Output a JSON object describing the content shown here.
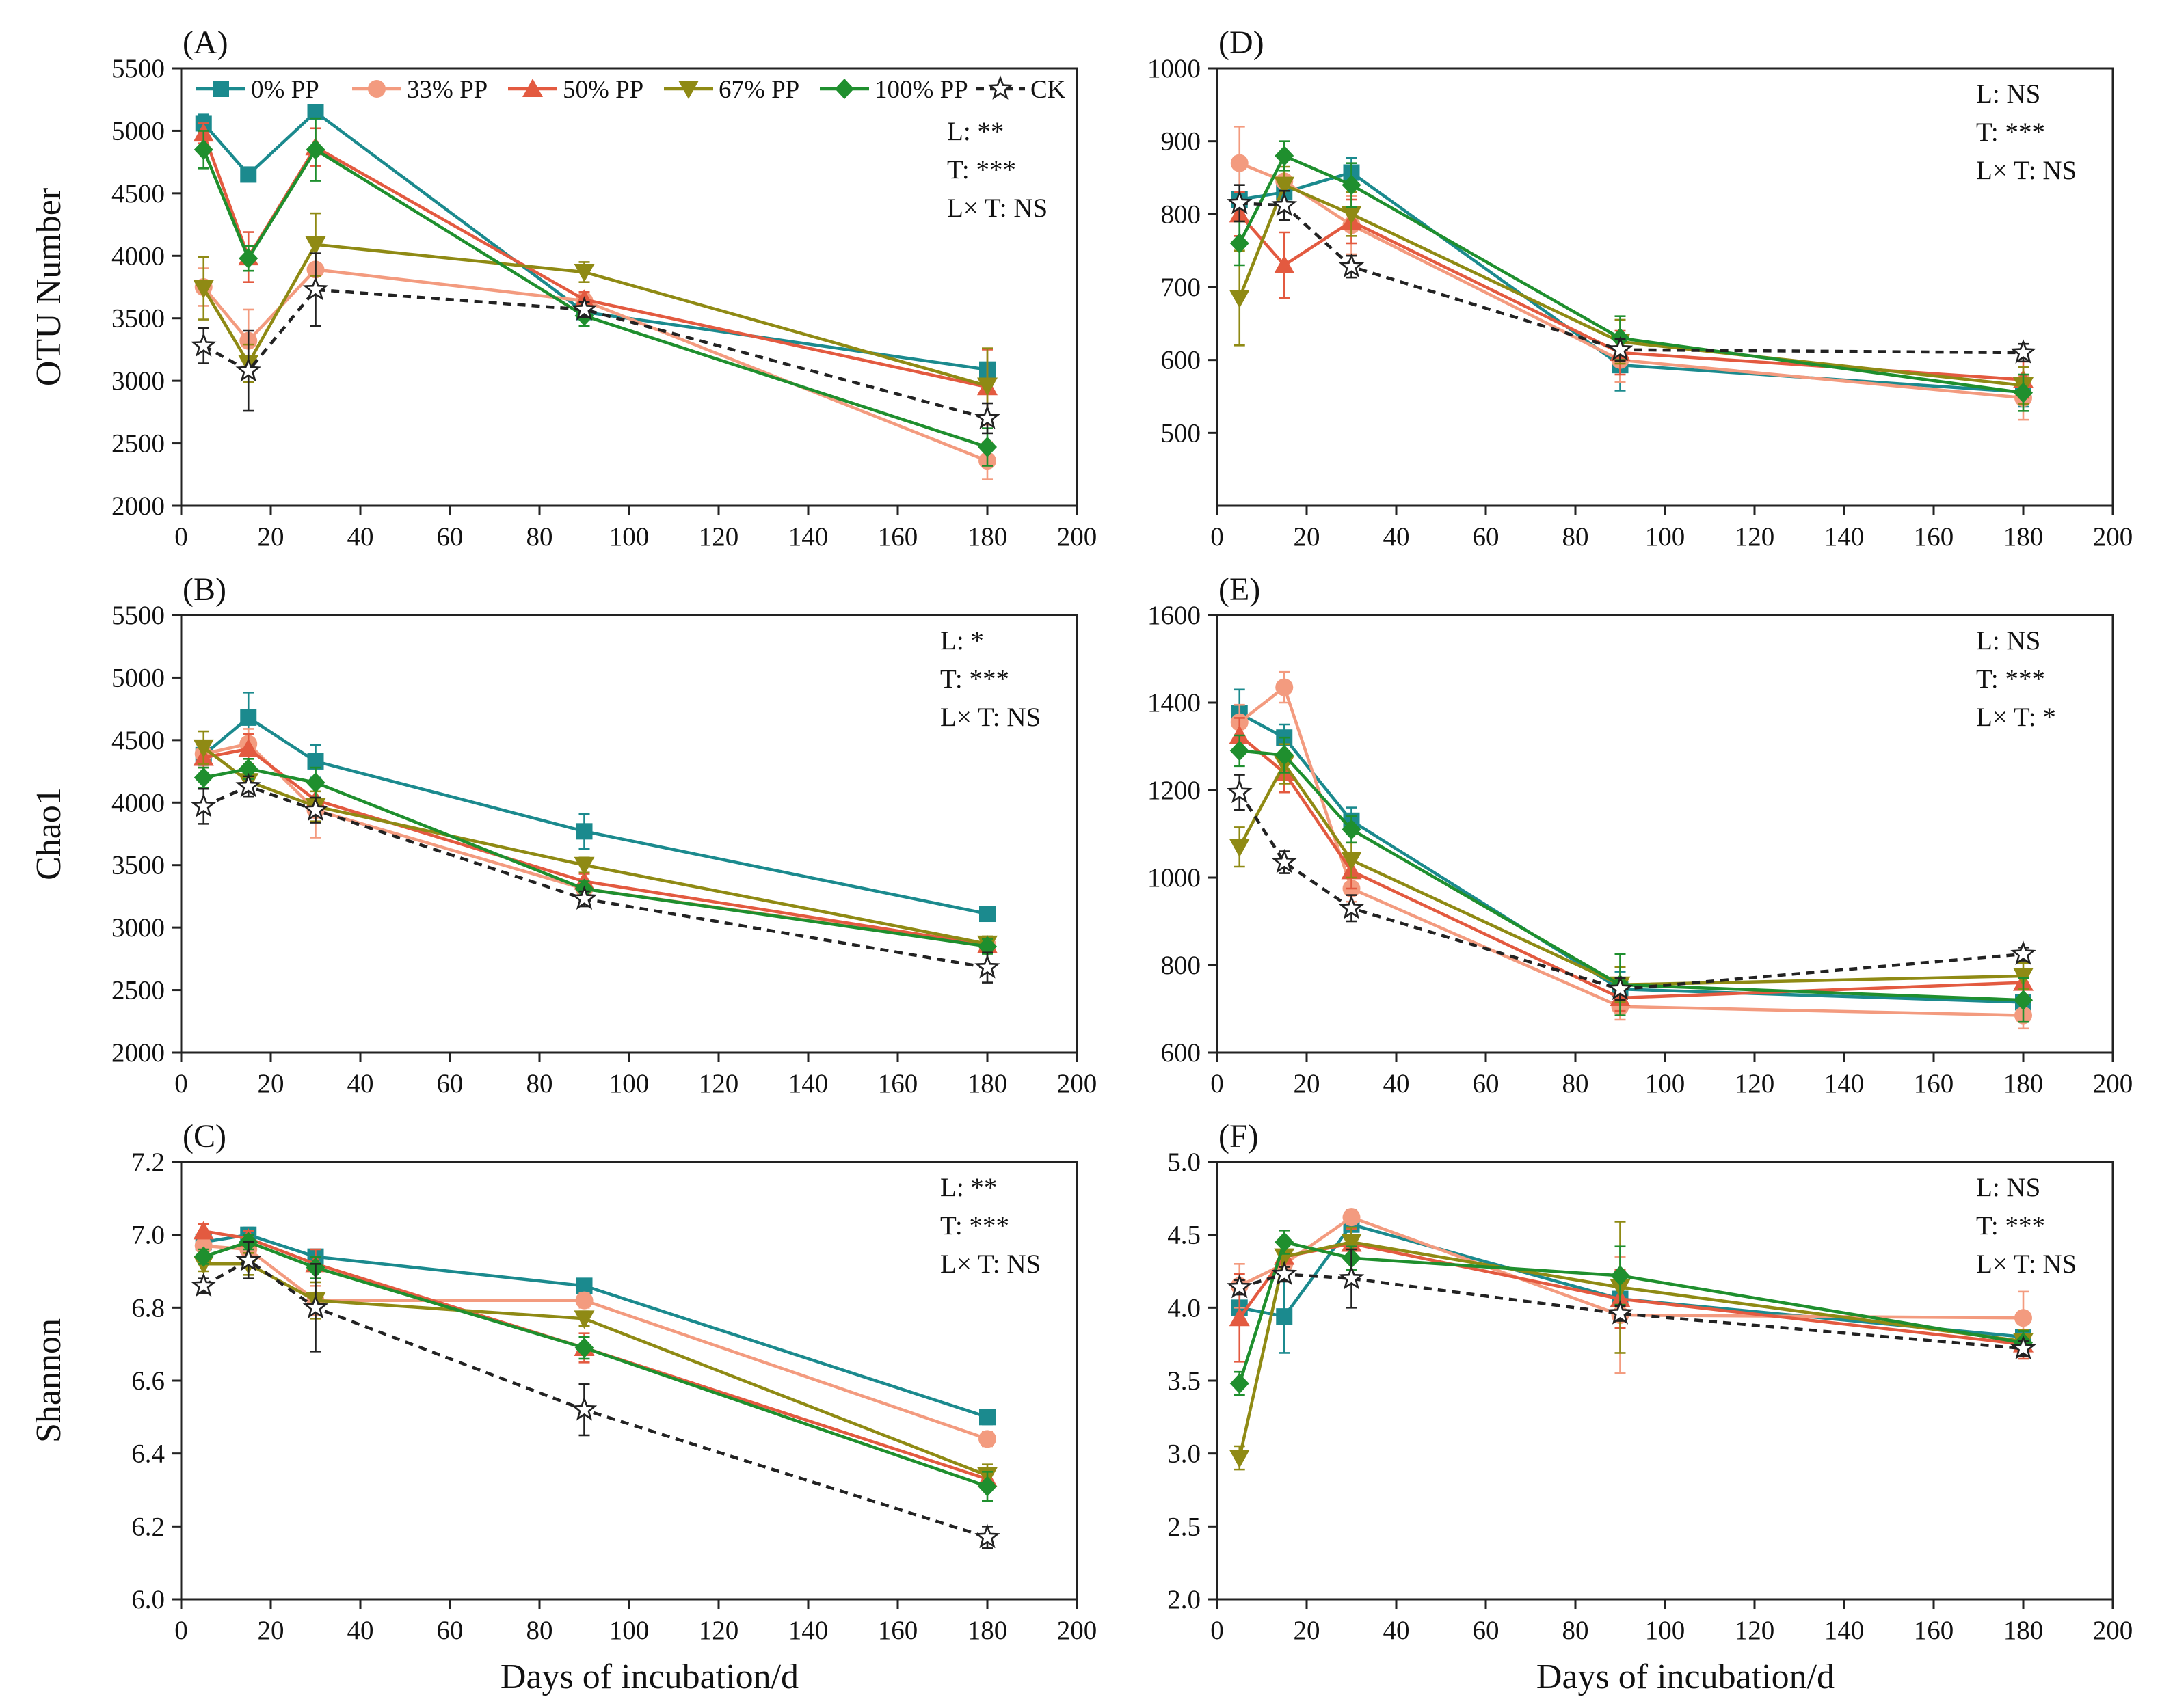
{
  "colors": {
    "0% PP": "#1b8a8e",
    "33% PP": "#f39b7f",
    "50% PP": "#e35a40",
    "67% PP": "#8f8a14",
    "100% PP": "#1f8f2e",
    "CK": "#222222"
  },
  "chart_data": [
    {
      "id": "A",
      "type": "line",
      "panel_label": "(A)",
      "ylabel": "OTU Number",
      "xlabel": "",
      "xlim": [
        0,
        200
      ],
      "ylim": [
        2000,
        5500
      ],
      "xticks": [
        0,
        20,
        40,
        60,
        80,
        100,
        120,
        140,
        160,
        180,
        200
      ],
      "yticks": [
        2000,
        2500,
        3000,
        3500,
        4000,
        4500,
        5000,
        5500
      ],
      "ytick_labels": [
        "2000",
        "2500",
        "3000",
        "3500",
        "4000",
        "4500",
        "5000",
        "5500"
      ],
      "legend": true,
      "stats": [
        "L: **",
        "T: ***",
        "L× T: NS"
      ],
      "x": [
        5,
        15,
        30,
        90,
        180
      ],
      "series": [
        {
          "name": "0% PP",
          "marker": "square",
          "values": [
            5060,
            4650,
            5150,
            3550,
            3090
          ],
          "errors": [
            70,
            30,
            40,
            40,
            40
          ]
        },
        {
          "name": "33% PP",
          "marker": "circle",
          "values": [
            3750,
            3320,
            3890,
            3640,
            2360
          ],
          "errors": [
            150,
            250,
            200,
            60,
            150
          ]
        },
        {
          "name": "50% PP",
          "marker": "triangle-up",
          "values": [
            4980,
            3990,
            4870,
            3650,
            2950
          ],
          "errors": [
            80,
            200,
            150,
            60,
            300
          ]
        },
        {
          "name": "67% PP",
          "marker": "triangle-down",
          "values": [
            3740,
            3140,
            4090,
            3870,
            2960
          ],
          "errors": [
            250,
            150,
            250,
            80,
            300
          ]
        },
        {
          "name": "100% PP",
          "marker": "diamond",
          "values": [
            4850,
            3980,
            4850,
            3520,
            2470
          ],
          "errors": [
            150,
            100,
            250,
            80,
            150
          ]
        },
        {
          "name": "CK",
          "marker": "star",
          "values": [
            3280,
            3080,
            3730,
            3570,
            2700
          ],
          "errors": [
            140,
            320,
            290,
            60,
            120
          ]
        }
      ]
    },
    {
      "id": "B",
      "type": "line",
      "panel_label": "(B)",
      "ylabel": "Chao1",
      "xlabel": "",
      "xlim": [
        0,
        200
      ],
      "ylim": [
        2000,
        5500
      ],
      "xticks": [
        0,
        20,
        40,
        60,
        80,
        100,
        120,
        140,
        160,
        180,
        200
      ],
      "yticks": [
        2000,
        2500,
        3000,
        3500,
        4000,
        4500,
        5000,
        5500
      ],
      "ytick_labels": [
        "2000",
        "2500",
        "3000",
        "3500",
        "4000",
        "4500",
        "5000",
        "5500"
      ],
      "legend": false,
      "stats": [
        "L: *",
        "T: ***",
        "L× T: NS"
      ],
      "x": [
        5,
        15,
        30,
        90,
        180
      ],
      "series": [
        {
          "name": "0% PP",
          "marker": "square",
          "values": [
            4380,
            4680,
            4330,
            3770,
            3110
          ],
          "errors": [
            80,
            200,
            130,
            140,
            40
          ]
        },
        {
          "name": "33% PP",
          "marker": "circle",
          "values": [
            4390,
            4470,
            3940,
            3310,
            2860
          ],
          "errors": [
            80,
            120,
            220,
            60,
            60
          ]
        },
        {
          "name": "50% PP",
          "marker": "triangle-up",
          "values": [
            4360,
            4430,
            4020,
            3370,
            2860
          ],
          "errors": [
            80,
            120,
            120,
            60,
            60
          ]
        },
        {
          "name": "67% PP",
          "marker": "triangle-down",
          "values": [
            4440,
            4170,
            3970,
            3500,
            2870
          ],
          "errors": [
            130,
            80,
            120,
            60,
            60
          ]
        },
        {
          "name": "100% PP",
          "marker": "diamond",
          "values": [
            4200,
            4270,
            4160,
            3310,
            2850
          ],
          "errors": [
            80,
            80,
            120,
            60,
            60
          ]
        },
        {
          "name": "CK",
          "marker": "star",
          "values": [
            3970,
            4130,
            3940,
            3230,
            2680
          ],
          "errors": [
            140,
            80,
            100,
            60,
            120
          ]
        }
      ]
    },
    {
      "id": "C",
      "type": "line",
      "panel_label": "(C)",
      "ylabel": "Shannon",
      "xlabel": "Days of incubation/d",
      "xlim": [
        0,
        200
      ],
      "ylim": [
        6.0,
        7.2
      ],
      "xticks": [
        0,
        20,
        40,
        60,
        80,
        100,
        120,
        140,
        160,
        180,
        200
      ],
      "yticks": [
        6.0,
        6.2,
        6.4,
        6.6,
        6.8,
        7.0,
        7.2
      ],
      "ytick_labels": [
        "6.0",
        "6.2",
        "6.4",
        "6.6",
        "6.8",
        "7.0",
        "7.2"
      ],
      "legend": false,
      "stats": [
        "L: **",
        "T: ***",
        "L× T: NS"
      ],
      "x": [
        5,
        15,
        30,
        90,
        180
      ],
      "series": [
        {
          "name": "0% PP",
          "marker": "square",
          "values": [
            6.98,
            7.0,
            6.94,
            6.86,
            6.5
          ],
          "errors": [
            0.02,
            0.02,
            0.02,
            0.01,
            0.02
          ]
        },
        {
          "name": "33% PP",
          "marker": "circle",
          "values": [
            6.97,
            6.96,
            6.82,
            6.82,
            6.44
          ],
          "errors": [
            0.03,
            0.04,
            0.04,
            0.02,
            0.02
          ]
        },
        {
          "name": "50% PP",
          "marker": "triangle-up",
          "values": [
            7.01,
            6.99,
            6.92,
            6.69,
            6.33
          ],
          "errors": [
            0.02,
            0.02,
            0.04,
            0.04,
            0.03
          ]
        },
        {
          "name": "67% PP",
          "marker": "triangle-down",
          "values": [
            6.92,
            6.92,
            6.82,
            6.77,
            6.34
          ],
          "errors": [
            0.02,
            0.03,
            0.05,
            0.02,
            0.03
          ]
        },
        {
          "name": "100% PP",
          "marker": "diamond",
          "values": [
            6.94,
            6.98,
            6.91,
            6.69,
            6.31
          ],
          "errors": [
            0.02,
            0.02,
            0.03,
            0.03,
            0.04
          ]
        },
        {
          "name": "CK",
          "marker": "star",
          "values": [
            6.86,
            6.93,
            6.8,
            6.52,
            6.17
          ],
          "errors": [
            0.02,
            0.05,
            0.12,
            0.07,
            0.03
          ]
        }
      ]
    },
    {
      "id": "D",
      "type": "line",
      "panel_label": "(D)",
      "ylabel": "",
      "xlabel": "",
      "xlim": [
        0,
        200
      ],
      "ylim": [
        400,
        1000
      ],
      "xticks": [
        0,
        20,
        40,
        60,
        80,
        100,
        120,
        140,
        160,
        180,
        200
      ],
      "yticks": [
        500,
        600,
        700,
        800,
        900,
        1000
      ],
      "ytick_labels": [
        "500",
        "600",
        "700",
        "800",
        "900",
        "1000"
      ],
      "legend": false,
      "stats": [
        "L: NS",
        "T: ***",
        "L× T: NS"
      ],
      "x": [
        5,
        15,
        30,
        90,
        180
      ],
      "series": [
        {
          "name": "0% PP",
          "marker": "square",
          "values": [
            820,
            830,
            857,
            593,
            556
          ],
          "errors": [
            50,
            20,
            20,
            35,
            20
          ]
        },
        {
          "name": "33% PP",
          "marker": "circle",
          "values": [
            870,
            845,
            785,
            600,
            548
          ],
          "errors": [
            50,
            40,
            40,
            30,
            30
          ]
        },
        {
          "name": "50% PP",
          "marker": "triangle-up",
          "values": [
            800,
            730,
            790,
            610,
            573
          ],
          "errors": [
            30,
            45,
            30,
            30,
            25
          ]
        },
        {
          "name": "67% PP",
          "marker": "triangle-down",
          "values": [
            685,
            840,
            800,
            625,
            565
          ],
          "errors": [
            65,
            25,
            30,
            30,
            25
          ]
        },
        {
          "name": "100% PP",
          "marker": "diamond",
          "values": [
            760,
            880,
            840,
            630,
            555
          ],
          "errors": [
            30,
            20,
            30,
            30,
            25
          ]
        },
        {
          "name": "CK",
          "marker": "star",
          "values": [
            815,
            812,
            728,
            614,
            610
          ],
          "errors": [
            25,
            20,
            15,
            15,
            12
          ]
        }
      ]
    },
    {
      "id": "E",
      "type": "line",
      "panel_label": "(E)",
      "ylabel": "",
      "xlabel": "",
      "xlim": [
        0,
        200
      ],
      "ylim": [
        600,
        1600
      ],
      "xticks": [
        0,
        20,
        40,
        60,
        80,
        100,
        120,
        140,
        160,
        180,
        200
      ],
      "yticks": [
        600,
        800,
        1000,
        1200,
        1400,
        1600
      ],
      "ytick_labels": [
        "600",
        "800",
        "1000",
        "1200",
        "1400",
        "1600"
      ],
      "legend": false,
      "stats": [
        "L: NS",
        "T: ***",
        "L× T: *"
      ],
      "x": [
        5,
        15,
        30,
        90,
        180
      ],
      "series": [
        {
          "name": "0% PP",
          "marker": "square",
          "values": [
            1375,
            1320,
            1130,
            745,
            715
          ],
          "errors": [
            55,
            30,
            30,
            40,
            30
          ]
        },
        {
          "name": "33% PP",
          "marker": "circle",
          "values": [
            1355,
            1435,
            975,
            705,
            685
          ],
          "errors": [
            40,
            35,
            30,
            30,
            30
          ]
        },
        {
          "name": "50% PP",
          "marker": "triangle-up",
          "values": [
            1325,
            1240,
            1015,
            725,
            760
          ],
          "errors": [
            40,
            45,
            40,
            30,
            30
          ]
        },
        {
          "name": "67% PP",
          "marker": "triangle-down",
          "values": [
            1070,
            1260,
            1040,
            755,
            775
          ],
          "errors": [
            45,
            45,
            40,
            40,
            30
          ]
        },
        {
          "name": "100% PP",
          "marker": "diamond",
          "values": [
            1290,
            1280,
            1110,
            755,
            720
          ],
          "errors": [
            35,
            40,
            30,
            70,
            50
          ]
        },
        {
          "name": "CK",
          "marker": "star",
          "values": [
            1195,
            1035,
            930,
            745,
            825
          ],
          "errors": [
            40,
            25,
            30,
            25,
            15
          ]
        }
      ]
    },
    {
      "id": "F",
      "type": "line",
      "panel_label": "(F)",
      "ylabel": "",
      "xlabel": "Days of incubation/d",
      "xlim": [
        0,
        200
      ],
      "ylim": [
        2.0,
        5.0
      ],
      "xticks": [
        0,
        20,
        40,
        60,
        80,
        100,
        120,
        140,
        160,
        180,
        200
      ],
      "yticks": [
        2.0,
        2.5,
        3.0,
        3.5,
        4.0,
        4.5,
        5.0
      ],
      "ytick_labels": [
        "2.0",
        "2.5",
        "3.0",
        "3.5",
        "4.0",
        "4.5",
        "5.0"
      ],
      "legend": false,
      "stats": [
        "L: NS",
        "T: ***",
        "L× T: NS"
      ],
      "x": [
        5,
        15,
        30,
        90,
        180
      ],
      "series": [
        {
          "name": "0% PP",
          "marker": "square",
          "values": [
            4.0,
            3.94,
            4.57,
            4.06,
            3.8
          ],
          "errors": [
            0.1,
            0.25,
            0.1,
            0.15,
            0.05
          ]
        },
        {
          "name": "33% PP",
          "marker": "circle",
          "values": [
            4.15,
            4.3,
            4.62,
            3.95,
            3.93
          ],
          "errors": [
            0.15,
            0.1,
            0.05,
            0.4,
            0.18
          ]
        },
        {
          "name": "50% PP",
          "marker": "triangle-up",
          "values": [
            3.93,
            4.35,
            4.44,
            4.06,
            3.75
          ],
          "errors": [
            0.3,
            0.1,
            0.1,
            0.2,
            0.1
          ]
        },
        {
          "name": "67% PP",
          "marker": "triangle-down",
          "values": [
            2.97,
            4.35,
            4.45,
            4.14,
            3.77
          ],
          "errors": [
            0.08,
            0.1,
            0.1,
            0.45,
            0.08
          ]
        },
        {
          "name": "100% PP",
          "marker": "diamond",
          "values": [
            3.48,
            4.45,
            4.34,
            4.22,
            3.76
          ],
          "errors": [
            0.08,
            0.08,
            0.08,
            0.2,
            0.08
          ]
        },
        {
          "name": "CK",
          "marker": "star",
          "values": [
            4.14,
            4.23,
            4.2,
            3.96,
            3.72
          ],
          "errors": [
            0.05,
            0.05,
            0.2,
            0.05,
            0.05
          ]
        }
      ]
    }
  ]
}
